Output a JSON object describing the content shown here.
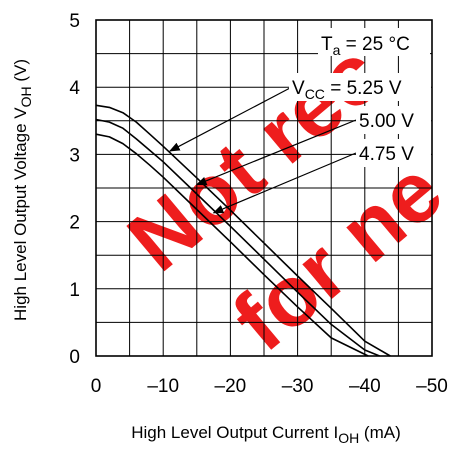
{
  "chart_data": {
    "type": "line",
    "xlabel": {
      "main": "High Level Output Current I",
      "sub": "OH",
      "unit": " (mA)"
    },
    "ylabel": {
      "main": "High Level Output Voltage V",
      "sub": "OH",
      "unit": " (V)"
    },
    "xlim": [
      0,
      -50
    ],
    "ylim": [
      0,
      5
    ],
    "x_ticks": [
      "0",
      "–10",
      "–20",
      "–30",
      "–40",
      "–50"
    ],
    "y_ticks": [
      "0",
      "1",
      "2",
      "3",
      "4",
      "5"
    ],
    "grid": true,
    "annotations": {
      "temp": {
        "main": "T",
        "sub": "a",
        "rest": " = 25 °C"
      },
      "vcc_prefix": {
        "main": "V",
        "sub": "CC",
        "rest": " = "
      },
      "v1": "5.25 V",
      "v2": "5.00 V",
      "v3": "4.75 V"
    },
    "series": [
      {
        "vcc": "5.25 V",
        "x": [
          0,
          -2,
          -4,
          -6,
          -8,
          -10,
          -15,
          -20,
          -25,
          -30,
          -35,
          -40,
          -43.8
        ],
        "y": [
          3.73,
          3.7,
          3.62,
          3.48,
          3.3,
          3.12,
          2.65,
          2.17,
          1.68,
          1.19,
          0.71,
          0.22,
          0
        ]
      },
      {
        "vcc": "5.00 V",
        "x": [
          0,
          -2,
          -4,
          -6,
          -8,
          -10,
          -15,
          -20,
          -25,
          -30,
          -35,
          -40,
          -42.2
        ],
        "y": [
          3.52,
          3.48,
          3.39,
          3.23,
          3.06,
          2.89,
          2.41,
          1.93,
          1.44,
          0.95,
          0.47,
          0.09,
          0
        ]
      },
      {
        "vcc": "4.75 V",
        "x": [
          0,
          -2,
          -4,
          -6,
          -8,
          -10,
          -15,
          -20,
          -25,
          -30,
          -35,
          -40.5
        ],
        "y": [
          3.3,
          3.26,
          3.16,
          3.01,
          2.84,
          2.66,
          2.18,
          1.7,
          1.21,
          0.73,
          0.27,
          0
        ]
      }
    ],
    "pointers": [
      {
        "label": "5.25 V",
        "x": -11,
        "y": 3.05
      },
      {
        "label": "5.00 V",
        "x": -15,
        "y": 2.55
      },
      {
        "label": "4.75 V",
        "x": -17.5,
        "y": 2.13
      }
    ]
  },
  "watermark": [
    "Not rec",
    "for ne"
  ],
  "colors": {
    "watermark": "#ee1111",
    "line": "#000000"
  }
}
